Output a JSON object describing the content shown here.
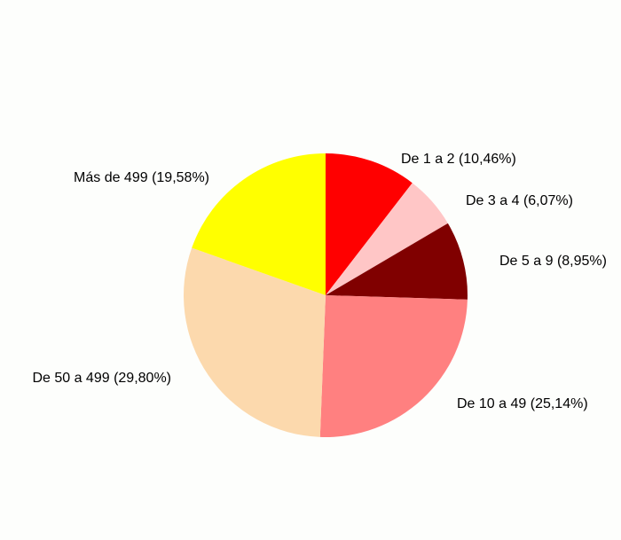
{
  "chart_data": {
    "type": "pie",
    "categories": [
      "De 1 a 2",
      "De 3 a 4",
      "De 5 a 9",
      "De 10 a 49",
      "De 50 a 499",
      "Más de 499"
    ],
    "values": [
      10.46,
      6.07,
      8.95,
      25.14,
      29.8,
      19.58
    ],
    "value_labels": [
      "(10,46%)",
      "(6,07%)",
      "(8,95%)",
      "(25,14%)",
      "(29,80%)",
      "(19,58%)"
    ],
    "colors": [
      "#ff0000",
      "#ffc6c6",
      "#800000",
      "#ff8080",
      "#fcd9ad",
      "#ffff00"
    ]
  }
}
